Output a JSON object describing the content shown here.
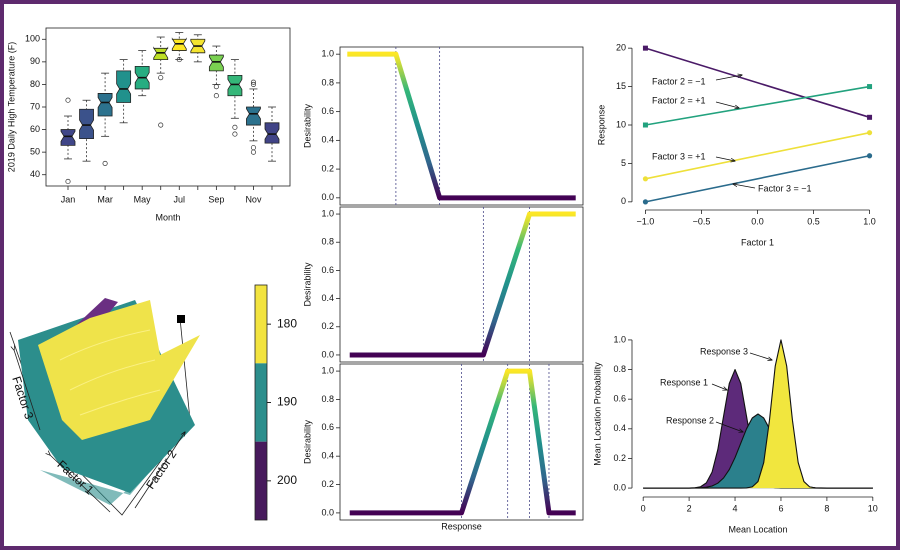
{
  "chart_data": [
    {
      "type": "boxplot",
      "xlabel": "Month",
      "ylabel": "2019 Daily High Temperature (F)",
      "categories": [
        "Jan",
        null,
        "Mar",
        null,
        "May",
        null,
        "Jul",
        null,
        "Sep",
        null,
        "Nov",
        null
      ],
      "boxes": [
        {
          "min": 47,
          "q1": 53,
          "median": 57,
          "q3": 60,
          "max": 66,
          "outliers": [
            37,
            73
          ]
        },
        {
          "min": 46,
          "q1": 56,
          "median": 62,
          "q3": 69,
          "max": 73,
          "outliers": []
        },
        {
          "min": 57,
          "q1": 66,
          "median": 72,
          "q3": 76,
          "max": 85,
          "outliers": [
            45
          ]
        },
        {
          "min": 63,
          "q1": 72,
          "median": 78,
          "q3": 86,
          "max": 91,
          "outliers": []
        },
        {
          "min": 75,
          "q1": 78,
          "median": 83,
          "q3": 88,
          "max": 95,
          "outliers": []
        },
        {
          "min": 85,
          "q1": 91,
          "median": 94,
          "q3": 96,
          "max": 101,
          "outliers": [
            83,
            62
          ]
        },
        {
          "min": 91,
          "q1": 95,
          "median": 98,
          "q3": 100,
          "max": 103,
          "outliers": [
            91
          ]
        },
        {
          "min": 90,
          "q1": 94,
          "median": 97,
          "q3": 100,
          "max": 102,
          "outliers": []
        },
        {
          "min": 80,
          "q1": 86,
          "median": 90,
          "q3": 93,
          "max": 97,
          "outliers": [
            79,
            75
          ]
        },
        {
          "min": 65,
          "q1": 75,
          "median": 80,
          "q3": 84,
          "max": 91,
          "outliers": [
            61,
            58
          ]
        },
        {
          "min": 55,
          "q1": 62,
          "median": 67,
          "q3": 70,
          "max": 78,
          "outliers": [
            81,
            80,
            52,
            50
          ]
        },
        {
          "min": 46,
          "q1": 54,
          "median": 58,
          "q3": 63,
          "max": 70,
          "outliers": []
        }
      ],
      "colors": [
        "#404688",
        "#3b528b",
        "#2c728e",
        "#21918c",
        "#27ad81",
        "#bddf26",
        "#fde725",
        "#f4e430",
        "#7ad151",
        "#35b779",
        "#2c728e",
        "#414487"
      ],
      "ylim": [
        35,
        105
      ],
      "yticks": [
        40,
        50,
        60,
        70,
        80,
        90,
        100
      ]
    },
    {
      "type": "surface",
      "xlabel": "Factor 1",
      "ylabel": "Factor 2",
      "zlabel": "Factor 3"
    },
    {
      "type": "colorbar",
      "bins": [
        175,
        185,
        195,
        205
      ],
      "colors": [
        "#f2e33f",
        "#2c8e8c",
        "#471a5c"
      ],
      "ylim": [
        205,
        175
      ],
      "yticks": [
        180,
        190,
        200
      ]
    },
    {
      "type": "line",
      "ylabel": "Desirability",
      "frame": true,
      "colormap": [
        "#440154",
        "#31688e",
        "#21918c",
        "#35b779",
        "#fde725"
      ],
      "x": [
        0.3,
        2.3,
        4.1,
        9.7
      ],
      "series": [
        {
          "values": [
            1,
            1,
            0,
            0
          ]
        }
      ],
      "vlines": [
        2.3,
        4.1
      ],
      "xlim": [
        0,
        10
      ],
      "ylim": [
        -0.05,
        1.05
      ],
      "yticks": [
        {
          "value": 0,
          "label": "0.0"
        },
        {
          "value": 0.2,
          "label": "0.2"
        },
        {
          "value": 0.4,
          "label": "0.4"
        },
        {
          "value": 0.6,
          "label": "0.6"
        },
        {
          "value": 0.8,
          "label": "0.8"
        },
        {
          "value": 1,
          "label": "1.0"
        }
      ]
    },
    {
      "type": "line",
      "ylabel": "Desirability",
      "frame": true,
      "colormap": [
        "#440154",
        "#31688e",
        "#21918c",
        "#35b779",
        "#fde725"
      ],
      "x": [
        0.4,
        5.9,
        7.8,
        9.7
      ],
      "series": [
        {
          "values": [
            0,
            0,
            1,
            1
          ]
        }
      ],
      "vlines": [
        5.9,
        7.8
      ],
      "xlim": [
        0,
        10
      ],
      "ylim": [
        -0.05,
        1.05
      ],
      "yticks": [
        {
          "value": 0,
          "label": "0.0"
        },
        {
          "value": 0.2,
          "label": "0.2"
        },
        {
          "value": 0.4,
          "label": "0.4"
        },
        {
          "value": 0.6,
          "label": "0.6"
        },
        {
          "value": 0.8,
          "label": "0.8"
        },
        {
          "value": 1,
          "label": "1.0"
        }
      ]
    },
    {
      "type": "line",
      "ylabel": "Desirability",
      "xlabel": "Response",
      "frame": true,
      "colormap": [
        "#440154",
        "#31688e",
        "#21918c",
        "#35b779",
        "#fde725"
      ],
      "x": [
        0.4,
        5.0,
        6.9,
        7.8,
        8.6,
        9.7
      ],
      "series": [
        {
          "values": [
            0,
            0,
            1,
            1,
            0,
            0
          ]
        }
      ],
      "vlines": [
        5.0,
        6.9,
        7.8,
        8.6
      ],
      "xlim": [
        0,
        10
      ],
      "ylim": [
        -0.05,
        1.05
      ],
      "yticks": [
        {
          "value": 0,
          "label": "0.0"
        },
        {
          "value": 0.2,
          "label": "0.2"
        },
        {
          "value": 0.4,
          "label": "0.4"
        },
        {
          "value": 0.6,
          "label": "0.6"
        },
        {
          "value": 0.8,
          "label": "0.8"
        },
        {
          "value": 1,
          "label": "1.0"
        }
      ]
    },
    {
      "type": "line",
      "xlabel": "Factor 1",
      "ylabel": "Response",
      "x": [
        -1,
        1
      ],
      "series": [
        {
          "name": "Factor 2 = −1",
          "color": "#4a1a67",
          "marker": "square",
          "values": [
            20,
            11
          ]
        },
        {
          "name": "Factor 2 = +1",
          "color": "#22a27e",
          "marker": "square",
          "values": [
            10,
            15
          ]
        },
        {
          "name": "Factor 3 = +1",
          "color": "#eee03a",
          "marker": "circle",
          "values": [
            3,
            9
          ]
        },
        {
          "name": "Factor 3 = −1",
          "color": "#2a6b8c",
          "marker": "circle",
          "values": [
            0,
            6
          ]
        }
      ],
      "xlim": [
        -1.12,
        1.12
      ],
      "ylim": [
        -0.8,
        20.8
      ],
      "xticks": [
        {
          "value": -1,
          "label": "−1.0"
        },
        {
          "value": -0.5,
          "label": "−0.5"
        },
        {
          "value": 0,
          "label": "0.0"
        },
        {
          "value": 0.5,
          "label": "0.5"
        },
        {
          "value": 1,
          "label": "1.0"
        }
      ],
      "yticks": [
        0,
        5,
        10,
        15,
        20
      ]
    },
    {
      "type": "area",
      "xlabel": "Mean Location",
      "ylabel": "Mean Location Probability",
      "x": [
        0,
        2,
        2.25,
        2.5,
        2.75,
        3,
        3.25,
        3.5,
        3.75,
        4,
        4.25,
        4.5,
        4.75,
        5,
        5.25,
        5.5,
        5.75,
        6,
        6.25,
        6.5,
        6.75,
        7,
        7.25,
        7.5,
        7.75,
        8,
        10
      ],
      "series": [
        {
          "name": "Response 1",
          "color": "#5d2a7a",
          "values": [
            0,
            0,
            0.002,
            0.009,
            0.035,
            0.108,
            0.26,
            0.485,
            0.706,
            0.8,
            0.706,
            0.485,
            0.26,
            0.108,
            0.035,
            0.009,
            0.002,
            0,
            0,
            0,
            0,
            0,
            0,
            0,
            0,
            0,
            0
          ]
        },
        {
          "name": "Response 2",
          "color": "#2b808c",
          "values": [
            0,
            0,
            0.001,
            0.002,
            0.006,
            0.014,
            0.033,
            0.068,
            0.125,
            0.206,
            0.303,
            0.4,
            0.473,
            0.5,
            0.473,
            0.4,
            0.303,
            0.206,
            0.125,
            0.068,
            0.033,
            0.014,
            0.006,
            0.002,
            0.001,
            0,
            0
          ]
        },
        {
          "name": "Response 3",
          "color": "#f1e63e",
          "values": [
            0,
            0,
            0,
            0,
            0,
            0,
            0,
            0,
            0,
            0,
            0,
            0.001,
            0.008,
            0.044,
            0.172,
            0.458,
            0.823,
            1,
            0.823,
            0.458,
            0.172,
            0.044,
            0.008,
            0.001,
            0,
            0,
            0
          ]
        }
      ],
      "xlim": [
        -0.4,
        10.4
      ],
      "ylim": [
        -0.04,
        1.04
      ],
      "xticks": [
        0,
        2,
        4,
        6,
        8,
        10
      ],
      "yticks": [
        {
          "value": 0,
          "label": "0.0"
        },
        {
          "value": 0.2,
          "label": "0.2"
        },
        {
          "value": 0.4,
          "label": "0.4"
        },
        {
          "value": 0.6,
          "label": "0.6"
        },
        {
          "value": 0.8,
          "label": "0.8"
        },
        {
          "value": 1,
          "label": "1.0"
        }
      ]
    }
  ]
}
